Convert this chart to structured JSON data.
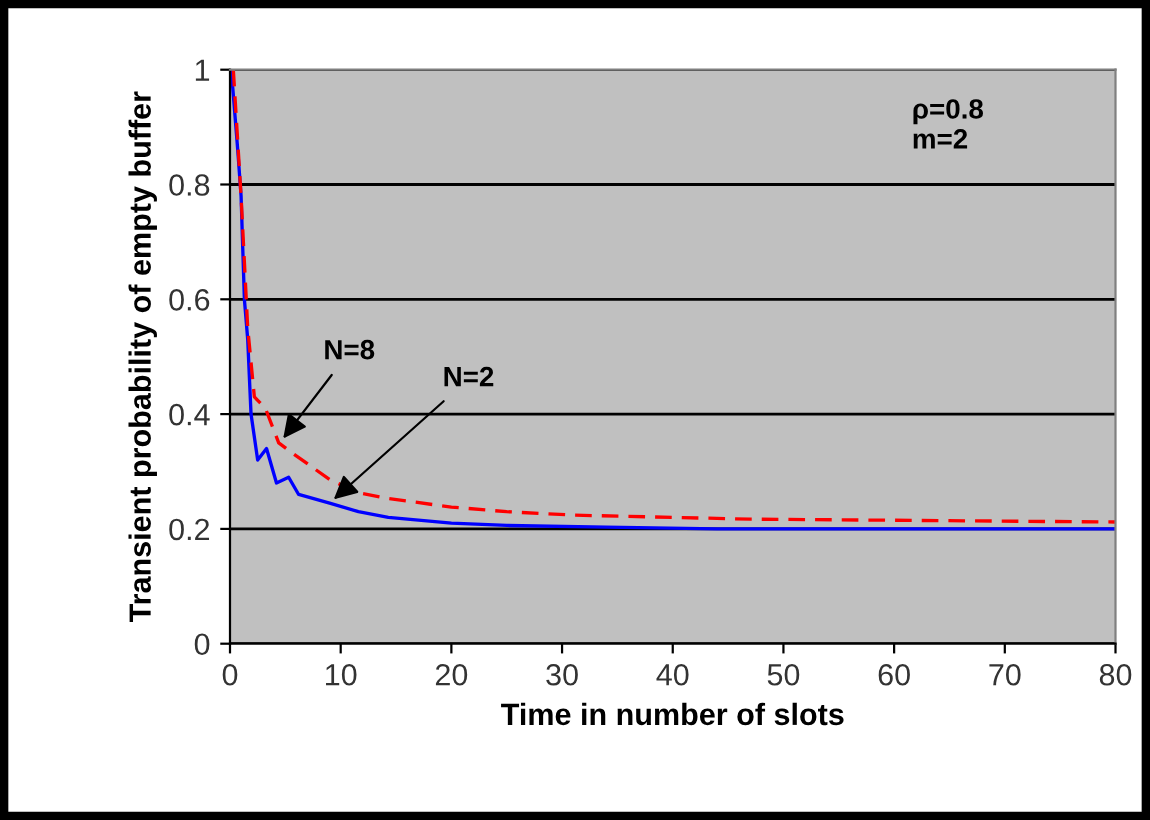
{
  "chart_data": {
    "type": "line",
    "xlabel": "Time in number of slots",
    "ylabel": "Transient probability of empty buffer",
    "series": [
      {
        "color": "#0000ff",
        "line_style": "solid",
        "x": [
          0,
          0.2,
          0.7,
          1,
          1.3,
          1.6,
          1.9,
          2.5,
          3.3,
          4.2,
          5.3,
          6.2,
          9,
          11.6,
          14.3,
          20,
          25,
          34,
          44,
          80
        ],
        "values": [
          1.0,
          0.98,
          0.86,
          0.78,
          0.6,
          0.53,
          0.4,
          0.32,
          0.34,
          0.28,
          0.29,
          0.26,
          0.245,
          0.23,
          0.22,
          0.21,
          0.206,
          0.203,
          0.2,
          0.2
        ]
      },
      {
        "color": "#ff0000",
        "line_style": "dashed",
        "x": [
          0.3,
          1,
          1.6,
          2.2,
          3.2,
          4.4,
          5.5,
          9,
          11.6,
          14.3,
          20,
          25,
          31,
          47,
          80
        ],
        "values": [
          1.0,
          0.78,
          0.55,
          0.43,
          0.41,
          0.35,
          0.334,
          0.286,
          0.263,
          0.253,
          0.238,
          0.23,
          0.224,
          0.217,
          0.212
        ]
      }
    ],
    "annotations": [
      {
        "text": "N=8",
        "x": 4.5,
        "y": 0.35
      },
      {
        "text": "N=2",
        "x": 9,
        "y": 0.245
      },
      "ρ=0.8\nm=2"
    ],
    "xlim": [
      0,
      80
    ],
    "ylim": [
      0,
      1
    ],
    "xticks": [
      0,
      10,
      20,
      30,
      40,
      50,
      60,
      70,
      80
    ],
    "yticks": [
      0,
      {
        "value": 0.2,
        "label": "0.2"
      },
      {
        "value": 0.4,
        "label": "0.4"
      },
      {
        "value": 0.6,
        "label": "0.6"
      },
      {
        "value": 0.8,
        "label": "0.8"
      },
      1
    ],
    "grid": "y",
    "marker": "none",
    "legend": false
  }
}
